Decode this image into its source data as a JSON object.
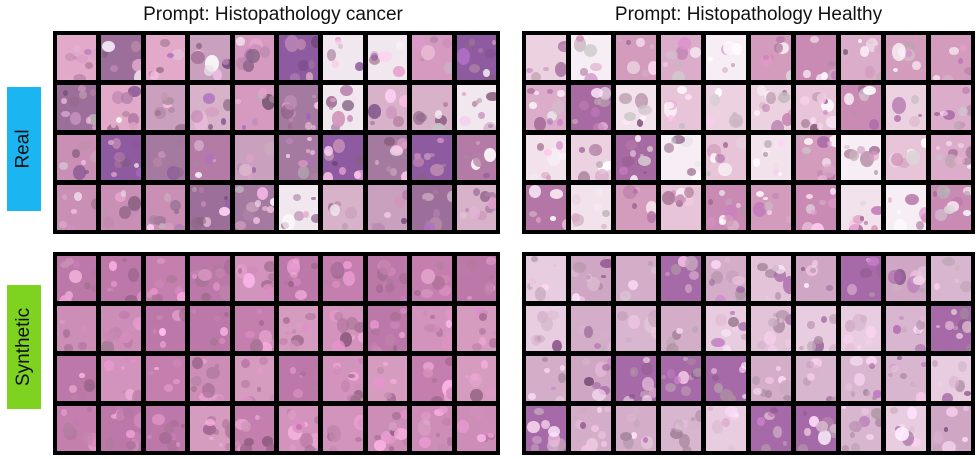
{
  "titles": {
    "cancer": "Prompt: Histopathology cancer",
    "healthy": "Prompt: Histopathology Healthy"
  },
  "rows": {
    "real": {
      "label": "Real",
      "color": "#1bb6f2"
    },
    "synthetic": {
      "label": "Synthetic",
      "color": "#7ed321"
    }
  },
  "grid": {
    "columns": 10,
    "rows": 4
  },
  "palettes": {
    "real_cancer": [
      "#c98fb5",
      "#b37ba6",
      "#d69ac0",
      "#8e5aa0",
      "#e2a9c8",
      "#a57aa0",
      "#caa0bf",
      "#f0e8ee",
      "#9c6f9a",
      "#d7b2c8"
    ],
    "real_healthy": [
      "#f6eef4",
      "#e8c4d8",
      "#d49cbc",
      "#faf5f8",
      "#c98ab4",
      "#ecd2e0",
      "#b476a6",
      "#f2e2ec",
      "#dcaccb",
      "#a86aa2"
    ],
    "synthetic_cancer": [
      "#c985b2",
      "#d293bc",
      "#bc78a9",
      "#d59cc0",
      "#c47fae",
      "#cc8db6"
    ],
    "synthetic_healthy": [
      "#d9b6cf",
      "#e2c3d8",
      "#cfa6c4",
      "#e8ccdf",
      "#d4aec9",
      "#a76aa8"
    ]
  }
}
